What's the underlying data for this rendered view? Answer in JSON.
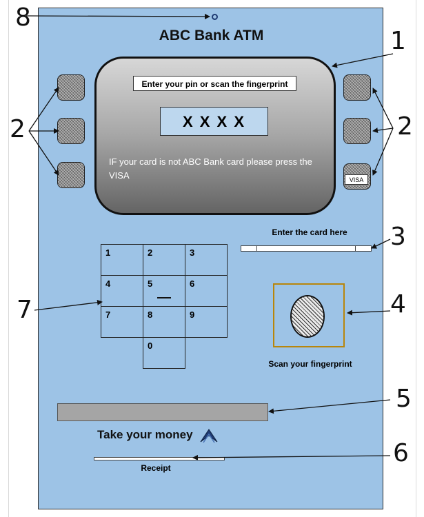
{
  "atm": {
    "title": "ABC Bank ATM",
    "screen": {
      "prompt": "Enter your pin or scan the fingerprint",
      "pin_display": "X X X X",
      "visa_note": "IF your card is not ABC Bank card please press the VISA"
    },
    "visa_button_label": "VISA",
    "keypad": [
      "1",
      "2",
      "3",
      "4",
      "5",
      "6",
      "7",
      "8",
      "9",
      "0"
    ],
    "card_slot_label": "Enter the card here",
    "fingerprint_label": "Scan your fingerprint",
    "money_label": "Take your money",
    "receipt_label": "Receipt"
  },
  "callouts": {
    "screen": "1",
    "side_buttons_left": "2",
    "side_buttons_right": "2",
    "card_slot": "3",
    "fingerprint": "4",
    "cash_slot": "5",
    "receipt": "6",
    "keypad": "7",
    "camera": "8"
  },
  "colors": {
    "atm_body": "#9dc3e6",
    "pin_box": "#bdd7ee",
    "fingerprint_frame": "#b8860b",
    "cash_slot": "#a5a5a5",
    "money_arrow": "#1f3b73"
  }
}
